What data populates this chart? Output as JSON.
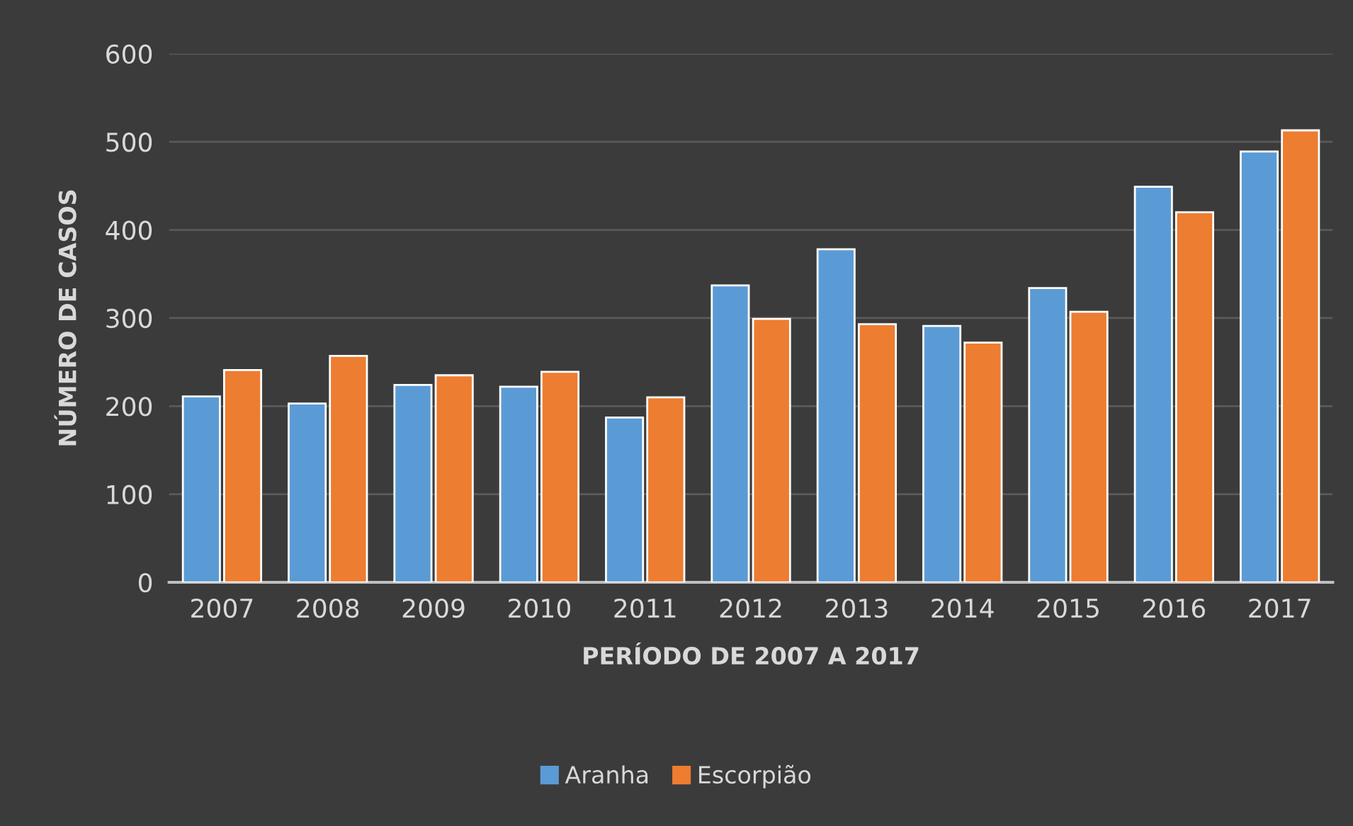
{
  "chart_data": {
    "type": "bar",
    "xlabel": "PERÍODO DE 2007 A 2017",
    "ylabel": "NÚMERO DE CASOS",
    "categories": [
      "2007",
      "2008",
      "2009",
      "2010",
      "2011",
      "2012",
      "2013",
      "2014",
      "2015",
      "2016",
      "2017"
    ],
    "series": [
      {
        "name": "Aranha",
        "color": "#5b9bd5",
        "values": [
          211,
          203,
          224,
          222,
          187,
          337,
          378,
          291,
          334,
          449,
          489
        ]
      },
      {
        "name": "Escorpião",
        "color": "#ed7d31",
        "values": [
          241,
          257,
          235,
          239,
          210,
          299,
          293,
          272,
          307,
          420,
          513
        ]
      }
    ],
    "ylim": [
      0,
      600
    ],
    "yticks": [
      0,
      100,
      200,
      300,
      400,
      500,
      600
    ],
    "grid": "y",
    "legend": "bottom"
  }
}
